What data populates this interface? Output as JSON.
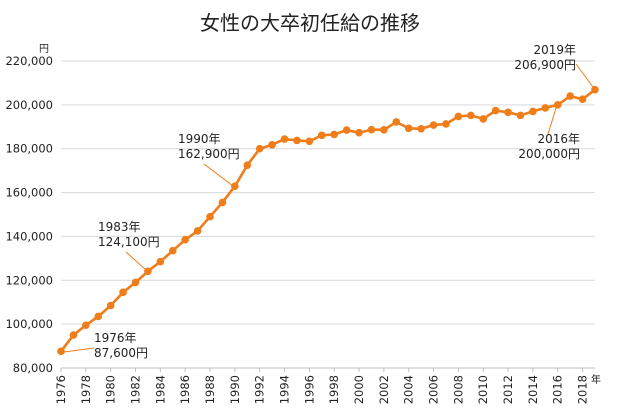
{
  "chart_data": {
    "type": "line",
    "title": "女性の大卒初任給の推移",
    "y_unit": "円",
    "x_unit": "年",
    "ylim": [
      80000,
      220000
    ],
    "y_ticks": [
      "80,000",
      "100,000",
      "120,000",
      "140,000",
      "160,000",
      "180,000",
      "200,000",
      "220,000"
    ],
    "y_tick_values": [
      80000,
      100000,
      120000,
      140000,
      160000,
      180000,
      200000,
      220000
    ],
    "x_ticks": [
      "1976",
      "1978",
      "1980",
      "1982",
      "1984",
      "1986",
      "1988",
      "1990",
      "1992",
      "1994",
      "1996",
      "1998",
      "2000",
      "2002",
      "2004",
      "2006",
      "2008",
      "2010",
      "2012",
      "2014",
      "2016",
      "2018"
    ],
    "x": [
      1976,
      1977,
      1978,
      1979,
      1980,
      1981,
      1982,
      1983,
      1984,
      1985,
      1986,
      1987,
      1988,
      1989,
      1990,
      1991,
      1992,
      1993,
      1994,
      1995,
      1996,
      1997,
      1998,
      1999,
      2000,
      2001,
      2002,
      2003,
      2004,
      2005,
      2006,
      2007,
      2008,
      2009,
      2010,
      2011,
      2012,
      2013,
      2014,
      2015,
      2016,
      2017,
      2018,
      2019
    ],
    "series": [
      {
        "values": [
          87600,
          95000,
          99500,
          103500,
          108500,
          114500,
          119000,
          124100,
          128500,
          133500,
          138500,
          142500,
          149000,
          155500,
          162900,
          172500,
          180000,
          181800,
          184400,
          183800,
          183400,
          186100,
          186500,
          188500,
          187300,
          188700,
          188600,
          192200,
          189300,
          189100,
          190800,
          191300,
          194700,
          195200,
          193600,
          197400,
          196600,
          195200,
          197000,
          198600,
          200000,
          204000,
          202600,
          206900
        ],
        "color": "#ef7d1a"
      }
    ],
    "annotations": [
      {
        "year_line": "1976年",
        "value_line": "87,600円",
        "x": 1976,
        "y": 87600
      },
      {
        "year_line": "1983年",
        "value_line": "124,100円",
        "x": 1983,
        "y": 124100
      },
      {
        "year_line": "1990年",
        "value_line": "162,900円",
        "x": 1990,
        "y": 162900
      },
      {
        "year_line": "2016年",
        "value_line": "200,000円",
        "x": 2016,
        "y": 200000
      },
      {
        "year_line": "2019年",
        "value_line": "206,900円",
        "x": 2019,
        "y": 206900
      }
    ],
    "grid": true,
    "legend": "none"
  }
}
